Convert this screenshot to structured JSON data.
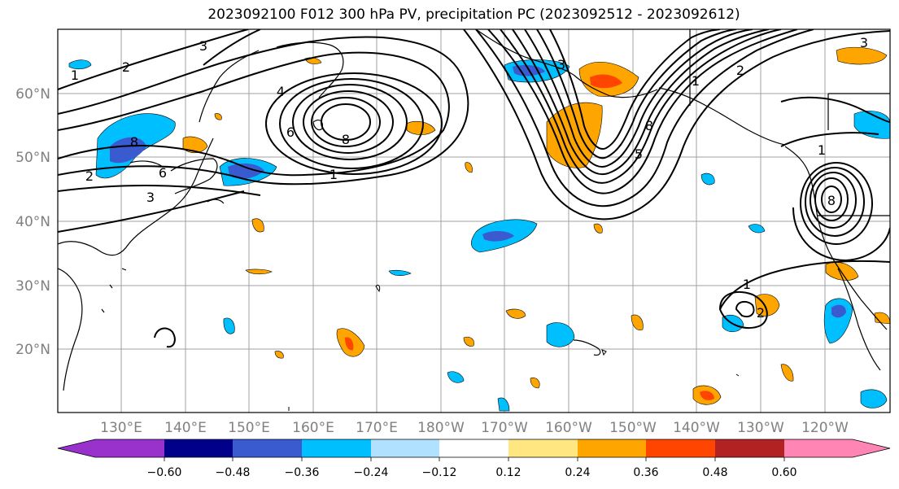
{
  "title": "2023092100 F012 300 hPa PV, precipitation PC (2023092512 - 2023092612)",
  "lat_labels": [
    "60°N",
    "50°N",
    "40°N",
    "30°N",
    "20°N"
  ],
  "lon_labels": [
    "130°E",
    "140°E",
    "150°E",
    "160°E",
    "170°E",
    "180°W",
    "170°W",
    "160°W",
    "150°W",
    "140°W",
    "130°W",
    "120°W"
  ],
  "colorbar": {
    "ticks": [
      "−0.60",
      "−0.48",
      "−0.36",
      "−0.24",
      "−0.12",
      "0.12",
      "0.24",
      "0.36",
      "0.48",
      "0.60"
    ],
    "colors": [
      "#9932cc",
      "#00008b",
      "#3a5bd0",
      "#00bfff",
      "#b0e2ff",
      "#ffffff",
      "#ffe680",
      "#ffa500",
      "#ff4500",
      "#b22222",
      "#ff85b4"
    ]
  },
  "contour_labels": [
    "2",
    "3",
    "1",
    "4",
    "6",
    "8",
    "3",
    "6",
    "8",
    "1",
    "2",
    "3",
    "1",
    "2",
    "5",
    "8",
    "1",
    "8",
    "1",
    "2",
    "3"
  ]
}
